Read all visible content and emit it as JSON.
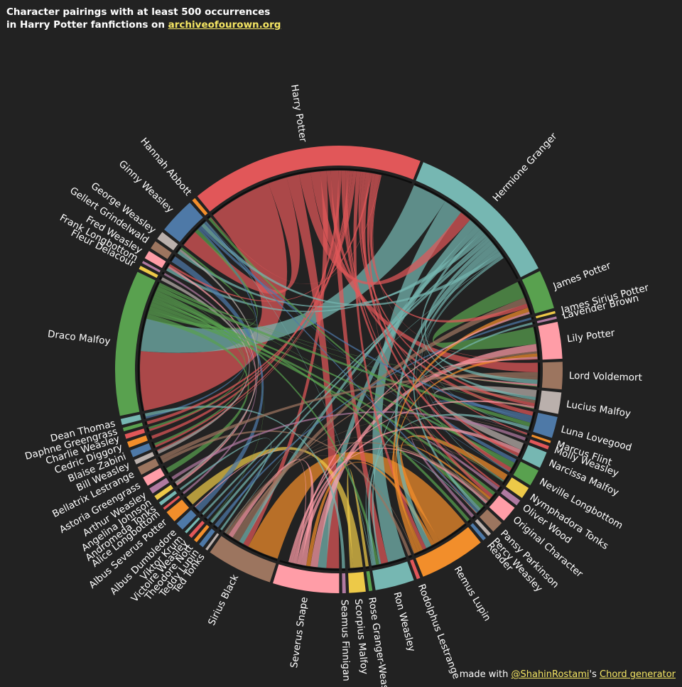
{
  "header": {
    "line1": "Character pairings with at least 500 occurrences",
    "line2_prefix": "in Harry Potter fanfictions on ",
    "link": "archiveofourown.org"
  },
  "footer": {
    "prefix": "made with ",
    "author": "@ShahinRostami",
    "middle": "'s ",
    "tool": "Chord generator"
  },
  "chart_data": {
    "type": "chord",
    "title": "Character pairings with at least 500 occurrences in Harry Potter fanfictions on archiveofourown.org",
    "nodes": [
      {
        "name": "Draco Malfoy",
        "value": 1230,
        "color": "#59a14f"
      },
      {
        "name": "Fleur Delacour",
        "value": 30,
        "color": "#edc948"
      },
      {
        "name": "Frank Longbottom",
        "value": 20,
        "color": "#b07aa1"
      },
      {
        "name": "Fred Weasley",
        "value": 70,
        "color": "#ff9da7"
      },
      {
        "name": "Gellert Grindelwald",
        "value": 70,
        "color": "#9c755f"
      },
      {
        "name": "George Weasley",
        "value": 70,
        "color": "#bab0ac"
      },
      {
        "name": "Ginny Weasley",
        "value": 310,
        "color": "#4e79a7"
      },
      {
        "name": "Hannah Abbott",
        "value": 30,
        "color": "#f28e2b"
      },
      {
        "name": "Harry Potter",
        "value": 1970,
        "color": "#e15759"
      },
      {
        "name": "Hermione Granger",
        "value": 1330,
        "color": "#76b7b2"
      },
      {
        "name": "James Potter",
        "value": 330,
        "color": "#59a14f"
      },
      {
        "name": "James Sirius Potter",
        "value": 20,
        "color": "#edc948"
      },
      {
        "name": "Lavender Brown",
        "value": 20,
        "color": "#b07aa1"
      },
      {
        "name": "Lily Potter",
        "value": 310,
        "color": "#ff9da7"
      },
      {
        "name": "Lord Voldemort",
        "value": 230,
        "color": "#9c755f"
      },
      {
        "name": "Lucius Malfoy",
        "value": 180,
        "color": "#bab0ac"
      },
      {
        "name": "Luna Lovegood",
        "value": 180,
        "color": "#4e79a7"
      },
      {
        "name": "Marcus Flint",
        "value": 20,
        "color": "#f28e2b"
      },
      {
        "name": "Molly Weasley",
        "value": 30,
        "color": "#e15759"
      },
      {
        "name": "Narcissa Malfoy",
        "value": 140,
        "color": "#76b7b2"
      },
      {
        "name": "Neville Longbottom",
        "value": 140,
        "color": "#59a14f"
      },
      {
        "name": "Nymphadora Tonks",
        "value": 100,
        "color": "#edc948"
      },
      {
        "name": "Oliver Wood",
        "value": 50,
        "color": "#b07aa1"
      },
      {
        "name": "Original Character",
        "value": 140,
        "color": "#ff9da7"
      },
      {
        "name": "Pansy Parkinson",
        "value": 100,
        "color": "#9c755f"
      },
      {
        "name": "Percy Weasley",
        "value": 30,
        "color": "#bab0ac"
      },
      {
        "name": "Reader",
        "value": 30,
        "color": "#4e79a7"
      },
      {
        "name": "Remus Lupin",
        "value": 560,
        "color": "#f28e2b"
      },
      {
        "name": "Rodolphus Lestrange",
        "value": 30,
        "color": "#e15759"
      },
      {
        "name": "Ron Weasley",
        "value": 330,
        "color": "#76b7b2"
      },
      {
        "name": "Rose Granger-Weasley",
        "value": 30,
        "color": "#59a14f"
      },
      {
        "name": "Scorpius Malfoy",
        "value": 140,
        "color": "#edc948"
      },
      {
        "name": "Seamus Finnigan",
        "value": 30,
        "color": "#b07aa1"
      },
      {
        "name": "Severus Snape",
        "value": 560,
        "color": "#ff9da7"
      },
      {
        "name": "Sirius Black",
        "value": 560,
        "color": "#9c755f"
      },
      {
        "name": "Ted Tonks",
        "value": 20,
        "color": "#bab0ac"
      },
      {
        "name": "Teddy Lupin",
        "value": 40,
        "color": "#4e79a7"
      },
      {
        "name": "Theodore Nott",
        "value": 30,
        "color": "#f28e2b"
      },
      {
        "name": "Victoire Weasley",
        "value": 30,
        "color": "#e15759"
      },
      {
        "name": "Viktor Krum",
        "value": 20,
        "color": "#76b7b2"
      },
      {
        "name": "Albus Dumbledore",
        "value": 70,
        "color": "#4e79a7"
      },
      {
        "name": "Albus Severus Potter",
        "value": 100,
        "color": "#f28e2b"
      },
      {
        "name": "Alice Longbottom",
        "value": 20,
        "color": "#e15759"
      },
      {
        "name": "Andromeda Tonks",
        "value": 30,
        "color": "#76b7b2"
      },
      {
        "name": "Angelina Johnson",
        "value": 40,
        "color": "#edc948"
      },
      {
        "name": "Arthur Weasley",
        "value": 50,
        "color": "#b07aa1"
      },
      {
        "name": "Astoria Greengrass",
        "value": 80,
        "color": "#ff9da7"
      },
      {
        "name": "Bellatrix Lestrange",
        "value": 70,
        "color": "#9c755f"
      },
      {
        "name": "Bill Weasley",
        "value": 40,
        "color": "#bab0ac"
      },
      {
        "name": "Blaise Zabini",
        "value": 60,
        "color": "#4e79a7"
      },
      {
        "name": "Cedric Diggory",
        "value": 50,
        "color": "#f28e2b"
      },
      {
        "name": "Charlie Weasley",
        "value": 40,
        "color": "#e15759"
      },
      {
        "name": "Daphne Greengrass",
        "value": 30,
        "color": "#59a14f"
      },
      {
        "name": "Dean Thomas",
        "value": 50,
        "color": "#76b7b2"
      }
    ],
    "links": [
      [
        "Harry Potter",
        "Draco Malfoy",
        600
      ],
      [
        "Hermione Granger",
        "Draco Malfoy",
        330
      ],
      [
        "Remus Lupin",
        "Sirius Black",
        330
      ],
      [
        "Harry Potter",
        "Ginny Weasley",
        180
      ],
      [
        "Hermione Granger",
        "Ron Weasley",
        180
      ],
      [
        "James Potter",
        "Lily Potter",
        160
      ],
      [
        "Harry Potter",
        "Severus Snape",
        120
      ],
      [
        "Albus Severus Potter",
        "Scorpius Malfoy",
        90
      ],
      [
        "Harry Potter",
        "Hermione Granger",
        110
      ],
      [
        "Harry Potter",
        "Lord Voldemort",
        90
      ],
      [
        "Harry Potter",
        "Sirius Black",
        60
      ],
      [
        "Hermione Granger",
        "Severus Snape",
        80
      ],
      [
        "Harry Potter",
        "Luna Lovegood",
        40
      ],
      [
        "Draco Malfoy",
        "Astoria Greengrass",
        50
      ],
      [
        "Lucius Malfoy",
        "Narcissa Malfoy",
        70
      ],
      [
        "Hermione Granger",
        "Sirius Black",
        50
      ],
      [
        "Remus Lupin",
        "Nymphadora Tonks",
        60
      ],
      [
        "Harry Potter",
        "Ron Weasley",
        70
      ],
      [
        "Draco Malfoy",
        "Ginny Weasley",
        40
      ],
      [
        "James Potter",
        "Sirius Black",
        60
      ],
      [
        "Severus Snape",
        "Lily Potter",
        70
      ],
      [
        "Neville Longbottom",
        "Luna Lovegood",
        40
      ],
      [
        "Draco Malfoy",
        "Pansy Parkinson",
        40
      ],
      [
        "Harry Potter",
        "Cedric Diggory",
        30
      ],
      [
        "Hermione Granger",
        "Lucius Malfoy",
        30
      ],
      [
        "Hermione Granger",
        "Fred Weasley",
        30
      ],
      [
        "Albus Dumbledore",
        "Gellert Grindelwald",
        60
      ],
      [
        "Draco Malfoy",
        "Original Character",
        40
      ],
      [
        "Harry Potter",
        "Original Character",
        40
      ],
      [
        "Hermione Granger",
        "George Weasley",
        30
      ],
      [
        "Harry Potter",
        "Oliver Wood",
        20
      ],
      [
        "Ron Weasley",
        "Lavender Brown",
        20
      ],
      [
        "Ginny Weasley",
        "Dean Thomas",
        20
      ],
      [
        "Ginny Weasley",
        "Luna Lovegood",
        30
      ],
      [
        "Draco Malfoy",
        "Neville Longbottom",
        30
      ],
      [
        "Remus Lupin",
        "Severus Snape",
        40
      ],
      [
        "Harry Potter",
        "Charlie Weasley",
        20
      ],
      [
        "Hermione Granger",
        "Viktor Krum",
        20
      ],
      [
        "Harry Potter",
        "Blaise Zabini",
        20
      ],
      [
        "Draco Malfoy",
        "Blaise Zabini",
        20
      ],
      [
        "Teddy Lupin",
        "Victoire Weasley",
        20
      ],
      [
        "Fred Weasley",
        "Angelina Johnson",
        20
      ],
      [
        "Bill Weasley",
        "Fleur Delacour",
        30
      ],
      [
        "Rodolphus Lestrange",
        "Bellatrix Lestrange",
        30
      ],
      [
        "Arthur Weasley",
        "Molly Weasley",
        30
      ],
      [
        "Frank Longbottom",
        "Alice Longbottom",
        20
      ],
      [
        "Ted Tonks",
        "Andromeda Tonks",
        20
      ],
      [
        "Rose Granger-Weasley",
        "Scorpius Malfoy",
        30
      ],
      [
        "Seamus Finnigan",
        "Dean Thomas",
        30
      ],
      [
        "Neville Longbottom",
        "Hannah Abbott",
        30
      ],
      [
        "Percy Weasley",
        "Oliver Wood",
        30
      ],
      [
        "Reader",
        "Draco Malfoy",
        30
      ],
      [
        "Theodore Nott",
        "Hermione Granger",
        30
      ],
      [
        "Marcus Flint",
        "Oliver Wood",
        0
      ],
      [
        "James Sirius Potter",
        "Teddy Lupin",
        20
      ],
      [
        "George Weasley",
        "Angelina Johnson",
        20
      ],
      [
        "Charlie Weasley",
        "Draco Malfoy",
        20
      ],
      [
        "Bill Weasley",
        "Harry Potter",
        10
      ],
      [
        "Lord Voldemort",
        "Bellatrix Lestrange",
        40
      ],
      [
        "Lord Voldemort",
        "Lucius Malfoy",
        30
      ],
      [
        "Lord Voldemort",
        "Hermione Granger",
        40
      ],
      [
        "Lily Potter",
        "Sirius Black",
        20
      ],
      [
        "Draco Malfoy",
        "Ron Weasley",
        30
      ],
      [
        "Harry Potter",
        "Daphne Greengrass",
        30
      ],
      [
        "Hermione Granger",
        "Remus Lupin",
        60
      ],
      [
        "Harry Potter",
        "Remus Lupin",
        40
      ],
      [
        "Draco Malfoy",
        "Luna Lovegood",
        40
      ],
      [
        "Severus Snape",
        "Sirius Black",
        50
      ],
      [
        "Hermione Granger",
        "Pansy Parkinson",
        30
      ],
      [
        "Harry Potter",
        "Marcus Flint",
        20
      ],
      [
        "Remus Lupin",
        "Original Character",
        30
      ],
      [
        "Sirius Black",
        "Original Character",
        30
      ],
      [
        "Harry Potter",
        "Lucius Malfoy",
        30
      ],
      [
        "Harry Potter",
        "Neville Longbottom",
        40
      ],
      [
        "Severus Snape",
        "Narcissa Malfoy",
        40
      ],
      [
        "Severus Snape",
        "Albus Dumbledore",
        10
      ],
      [
        "Draco Malfoy",
        "Theodore Nott",
        0
      ],
      [
        "Draco Malfoy",
        "George Weasley",
        20
      ],
      [
        "Harry Potter",
        "Fred Weasley",
        20
      ],
      [
        "Harry Potter",
        "Narcissa Malfoy",
        30
      ],
      [
        "Severus Snape",
        "Original Character",
        30
      ],
      [
        "Sirius Black",
        "Marcus Flint",
        0
      ],
      [
        "Harry Potter",
        "James Potter",
        40
      ],
      [
        "Lily Potter",
        "Remus Lupin",
        30
      ],
      [
        "James Potter",
        "Remus Lupin",
        40
      ],
      [
        "Lily Potter",
        "Lord Voldemort",
        20
      ],
      [
        "Hermione Granger",
        "Neville Longbottom",
        0
      ],
      [
        "Ron Weasley",
        "Luna Lovegood",
        30
      ],
      [
        "Hermione Granger",
        "Ginny Weasley",
        40
      ],
      [
        "James Potter",
        "Severus Snape",
        20
      ],
      [
        "Sirius Black",
        "Hermione Granger",
        0
      ],
      [
        "Severus Snape",
        "Lucius Malfoy",
        20
      ],
      [
        "Draco Malfoy",
        "Lord Voldemort",
        0
      ],
      [
        "Sirius Black",
        "Nymphadora Tonks",
        0
      ],
      [
        "Hermione Granger",
        "Nymphadora Tonks",
        0
      ],
      [
        "Draco Malfoy",
        "Lucius Malfoy",
        0
      ],
      [
        "Harry Potter",
        "Lily Potter",
        0
      ],
      [
        "Hermione Granger",
        "Luna Lovegood",
        0
      ],
      [
        "Ginny Weasley",
        "Pansy Parkinson",
        20
      ],
      [
        "Draco Malfoy",
        "Nymphadora Tonks",
        0
      ],
      [
        "Hermione Granger",
        "Original Character",
        0
      ],
      [
        "Ron Weasley",
        "Pansy Parkinson",
        10
      ],
      [
        "Harry Potter",
        "Pansy Parkinson",
        0
      ],
      [
        "Sirius Black",
        "Remus Lupin",
        0
      ],
      [
        "Ron Weasley",
        "Ginny Weasley",
        0
      ],
      [
        "Narcissa Malfoy",
        "Hermione Granger",
        0
      ],
      [
        "Neville Longbottom",
        "Ginny Weasley",
        0
      ],
      [
        "Harry Potter",
        "Hannah Abbott",
        0
      ]
    ]
  }
}
